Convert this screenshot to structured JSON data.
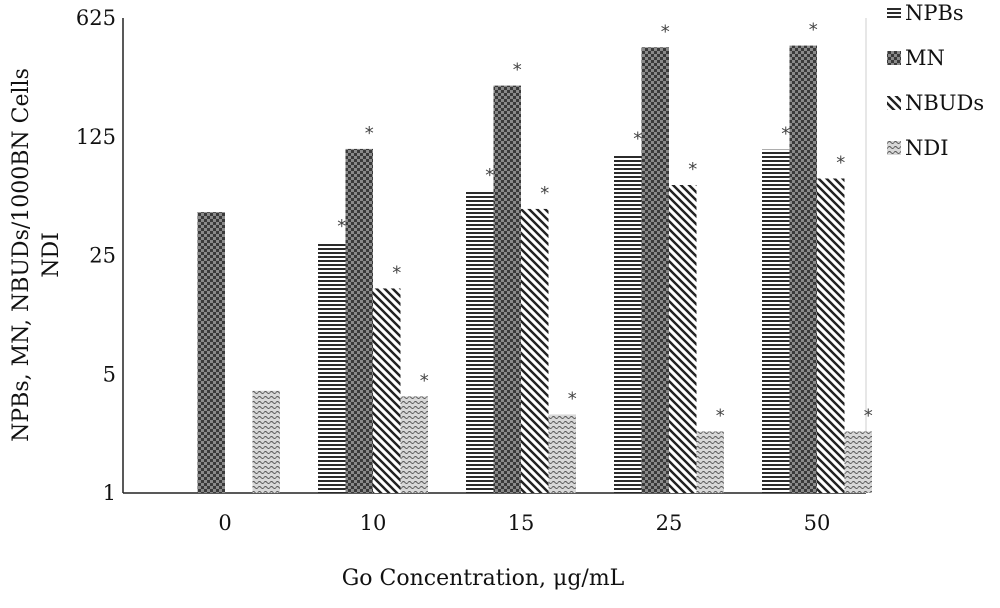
{
  "chart_data": {
    "type": "bar",
    "scale": "log",
    "title": "",
    "xlabel": "Go Concentration, μg/mL",
    "ylabel_lines": [
      "NPBs, MN, NBUDs/1000BN Cells",
      "NDI"
    ],
    "categories": [
      "0",
      "10",
      "15",
      "25",
      "50"
    ],
    "yticks": [
      1,
      5,
      25,
      125,
      625
    ],
    "ylim": [
      1,
      625
    ],
    "grid": false,
    "legend": "top-right, outside",
    "series": [
      {
        "name": "NPBs",
        "pattern": "hlines",
        "values": [
          null,
          30,
          60,
          98,
          105
        ],
        "significant": [
          false,
          true,
          true,
          true,
          true
        ]
      },
      {
        "name": "MN",
        "pattern": "checker",
        "values": [
          45,
          106,
          250,
          420,
          430
        ],
        "significant": [
          false,
          true,
          true,
          true,
          true
        ]
      },
      {
        "name": "NBUDs",
        "pattern": "diagonal",
        "values": [
          null,
          16,
          47,
          65,
          71
        ],
        "significant": [
          false,
          true,
          true,
          true,
          true
        ]
      },
      {
        "name": "NDI",
        "pattern": "dots",
        "values": [
          4.0,
          3.7,
          2.9,
          2.3,
          2.3
        ],
        "significant": [
          false,
          true,
          true,
          true,
          true
        ]
      }
    ],
    "annotation_symbol": "*"
  }
}
